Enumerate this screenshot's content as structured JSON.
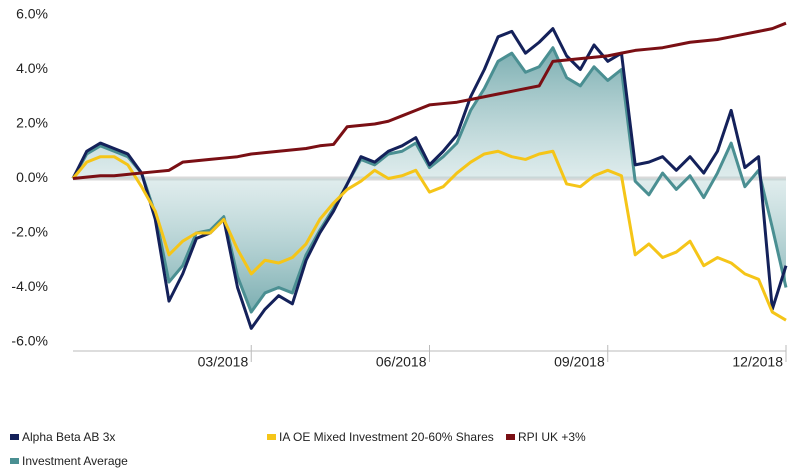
{
  "chart_data": {
    "type": "line",
    "categories": [
      null,
      null,
      null,
      null,
      null,
      null,
      null,
      null,
      null,
      null,
      null,
      null,
      null,
      "03/2018",
      null,
      null,
      null,
      null,
      null,
      null,
      null,
      null,
      null,
      null,
      null,
      null,
      "06/2018",
      null,
      null,
      null,
      null,
      null,
      null,
      null,
      null,
      null,
      null,
      null,
      null,
      "09/2018",
      null,
      null,
      null,
      null,
      null,
      null,
      null,
      null,
      null,
      null,
      null,
      null,
      "12/2018"
    ],
    "series": [
      {
        "name": "Alpha Beta AB 3x",
        "color": "#14215a",
        "values": [
          0,
          1.0,
          1.3,
          1.1,
          0.9,
          0.2,
          -1.5,
          -4.5,
          -3.5,
          -2.2,
          -2.0,
          -1.5,
          -4.0,
          -5.5,
          -4.8,
          -4.3,
          -4.6,
          -3.0,
          -2.0,
          -1.2,
          -0.2,
          0.8,
          0.6,
          1.0,
          1.2,
          1.5,
          0.5,
          1.0,
          1.6,
          3.0,
          4.0,
          5.2,
          5.4,
          4.6,
          5.0,
          5.5,
          4.5,
          4.0,
          4.9,
          4.3,
          4.6,
          0.5,
          0.6,
          0.8,
          0.3,
          0.8,
          0.2,
          1.0,
          2.5,
          0.4,
          0.8,
          -4.8,
          -3.2
        ]
      },
      {
        "name": "IA OE Mixed Investment 20-60% Shares",
        "color": "#f5c518",
        "values": [
          0,
          0.6,
          0.8,
          0.8,
          0.5,
          -0.3,
          -1.2,
          -2.8,
          -2.3,
          -2.0,
          -2.0,
          -1.5,
          -2.6,
          -3.5,
          -3.0,
          -3.1,
          -2.9,
          -2.4,
          -1.5,
          -0.9,
          -0.4,
          -0.1,
          0.3,
          0.0,
          0.1,
          0.3,
          -0.5,
          -0.3,
          0.2,
          0.6,
          0.9,
          1.0,
          0.8,
          0.7,
          0.9,
          1.0,
          -0.2,
          -0.3,
          0.1,
          0.3,
          0.1,
          -2.8,
          -2.4,
          -2.9,
          -2.7,
          -2.3,
          -3.2,
          -2.9,
          -3.1,
          -3.5,
          -3.7,
          -4.9,
          -5.2
        ]
      },
      {
        "name": "RPI UK +3%",
        "color": "#7a0f14",
        "values": [
          0,
          0.05,
          0.1,
          0.1,
          0.15,
          0.2,
          0.25,
          0.3,
          0.6,
          0.65,
          0.7,
          0.75,
          0.8,
          0.9,
          0.95,
          1.0,
          1.05,
          1.1,
          1.2,
          1.25,
          1.9,
          1.95,
          2.0,
          2.1,
          2.3,
          2.5,
          2.7,
          2.75,
          2.8,
          2.9,
          3.0,
          3.1,
          3.2,
          3.3,
          3.4,
          4.3,
          4.35,
          4.4,
          4.45,
          4.5,
          4.6,
          4.7,
          4.75,
          4.8,
          4.9,
          5.0,
          5.05,
          5.1,
          5.2,
          5.3,
          5.4,
          5.5,
          5.7
        ]
      },
      {
        "name": "Investment Average",
        "color": "#4a8f92",
        "area": true,
        "values": [
          0,
          0.9,
          1.2,
          1.0,
          0.8,
          0.2,
          -1.3,
          -3.8,
          -3.2,
          -2.0,
          -1.9,
          -1.4,
          -3.6,
          -4.9,
          -4.2,
          -4.0,
          -4.2,
          -2.8,
          -1.9,
          -1.1,
          -0.2,
          0.7,
          0.5,
          0.9,
          1.0,
          1.3,
          0.4,
          0.8,
          1.3,
          2.5,
          3.3,
          4.3,
          4.6,
          3.9,
          4.1,
          4.8,
          3.7,
          3.4,
          4.1,
          3.6,
          4.0,
          -0.1,
          -0.6,
          0.2,
          -0.4,
          0.1,
          -0.7,
          0.2,
          1.3,
          -0.3,
          0.3,
          -1.8,
          -4.0
        ]
      }
    ],
    "ylim": [
      -6,
      6
    ],
    "yticks": [
      {
        "value": -6,
        "label": "-6.0%"
      },
      {
        "value": -4,
        "label": "-4.0%"
      },
      {
        "value": -2,
        "label": "-2.0%"
      },
      {
        "value": 0,
        "label": "0.0%"
      },
      {
        "value": 2,
        "label": "2.0%"
      },
      {
        "value": 4,
        "label": "4.0%"
      },
      {
        "value": 6,
        "label": "6.0%"
      }
    ]
  }
}
